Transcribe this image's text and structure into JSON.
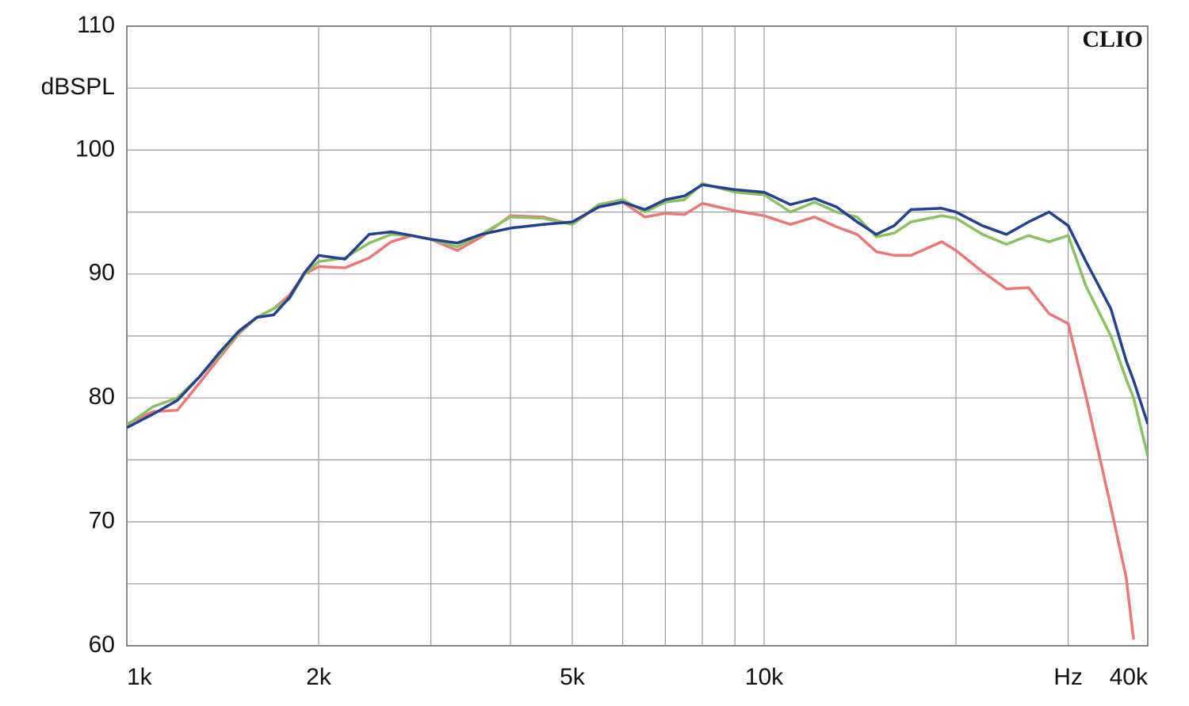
{
  "chart_data": {
    "type": "line",
    "watermark": "CLIO",
    "x_label": "Hz",
    "y_label": "dBSPL",
    "log_x": true,
    "grid": true,
    "xlim": [
      1000,
      40000
    ],
    "ylim": [
      60,
      110
    ],
    "xticks": [
      {
        "value": 1000,
        "label": "1k"
      },
      {
        "value": 2000,
        "label": "2k"
      },
      {
        "value": 5000,
        "label": "5k"
      },
      {
        "value": 10000,
        "label": "10k"
      },
      {
        "value": 40000,
        "label": "40k"
      }
    ],
    "xminor": [
      3000,
      4000,
      6000,
      7000,
      8000,
      9000,
      20000,
      30000
    ],
    "yticks": [
      60,
      70,
      80,
      90,
      100,
      110
    ],
    "yminor": [
      65,
      75,
      85,
      95,
      105
    ],
    "x": [
      1000,
      1100,
      1200,
      1300,
      1400,
      1500,
      1600,
      1700,
      1800,
      1900,
      2000,
      2200,
      2400,
      2600,
      2800,
      3000,
      3300,
      3600,
      4000,
      4500,
      5000,
      5500,
      6000,
      6500,
      7000,
      7500,
      8000,
      9000,
      10000,
      11000,
      12000,
      13000,
      14000,
      15000,
      16000,
      17000,
      19000,
      20000,
      22000,
      24000,
      26000,
      28000,
      30000,
      32000,
      35000,
      37000,
      38000,
      40000
    ],
    "series": [
      {
        "color": "#e8787a",
        "values": [
          77.9,
          78.9,
          79.0,
          81.2,
          83.3,
          85.2,
          86.5,
          87.2,
          88.3,
          90.0,
          90.6,
          90.5,
          91.3,
          92.6,
          93.1,
          92.8,
          91.9,
          93.0,
          94.7,
          94.6,
          94.0,
          95.5,
          95.8,
          94.6,
          94.9,
          94.8,
          95.7,
          95.1,
          94.7,
          94.0,
          94.6,
          93.8,
          93.2,
          91.8,
          91.5,
          91.5,
          92.6,
          91.9,
          90.2,
          88.8,
          88.9,
          86.8,
          86.0,
          80.1,
          71.2,
          65.5,
          60.5,
          null
        ]
      },
      {
        "color": "#8cc063",
        "values": [
          77.8,
          79.3,
          80.0,
          81.7,
          83.5,
          85.3,
          86.5,
          87.2,
          88.0,
          90.0,
          91.0,
          91.3,
          92.5,
          93.2,
          93.1,
          92.8,
          92.2,
          93.2,
          94.6,
          94.5,
          94.0,
          95.6,
          96.0,
          95.0,
          95.8,
          96.0,
          97.3,
          96.6,
          96.4,
          95.0,
          95.8,
          95.0,
          94.6,
          93.0,
          93.3,
          94.2,
          94.7,
          94.5,
          93.2,
          92.4,
          93.1,
          92.6,
          93.1,
          89.0,
          85.0,
          81.5,
          80.0,
          75.3
        ]
      },
      {
        "color": "#24418f",
        "values": [
          77.6,
          78.7,
          79.8,
          81.7,
          83.7,
          85.4,
          86.5,
          86.7,
          88.1,
          90.1,
          91.5,
          91.2,
          93.2,
          93.4,
          93.1,
          92.8,
          92.5,
          93.2,
          93.7,
          94.0,
          94.2,
          95.4,
          95.8,
          95.2,
          96.0,
          96.3,
          97.2,
          96.8,
          96.6,
          95.6,
          96.1,
          95.4,
          94.2,
          93.2,
          93.9,
          95.2,
          95.3,
          95.0,
          93.9,
          93.2,
          94.2,
          95.0,
          93.9,
          91.0,
          87.2,
          83.0,
          81.4,
          77.9
        ]
      }
    ]
  }
}
